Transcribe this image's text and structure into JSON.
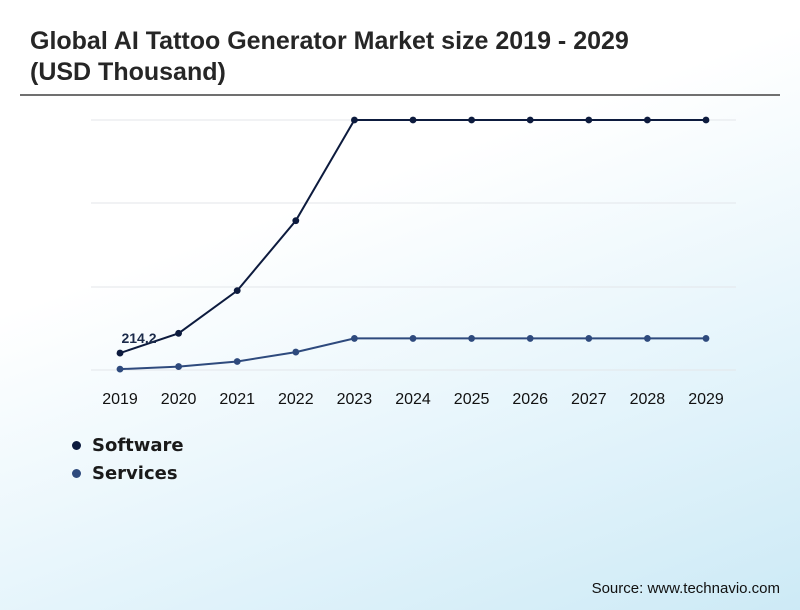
{
  "title": "Global AI Tattoo Generator Market size 2019 - 2029 (USD Thousand)",
  "source": "Source: www.technavio.com",
  "colors": {
    "software": "#0d1b3e",
    "services": "#2e4a7d",
    "grid": "#e3e6ea"
  },
  "chart_data": {
    "type": "line",
    "categories": [
      "2019",
      "2020",
      "2021",
      "2022",
      "2023",
      "2024",
      "2025",
      "2026",
      "2027",
      "2028",
      "2029"
    ],
    "series": [
      {
        "name": "Software",
        "values": [
          214.2,
          330,
          580,
          990,
          1580,
          1580,
          1580,
          1580,
          1580,
          1580,
          1580
        ]
      },
      {
        "name": "Services",
        "values": [
          120,
          135,
          165,
          220,
          300,
          300,
          300,
          300,
          300,
          300,
          300
        ]
      }
    ],
    "annotations": [
      {
        "series": "Software",
        "index": 0,
        "label": "214.2"
      }
    ],
    "ylim": [
      115,
      1580
    ],
    "grid": true,
    "legend_position": "bottom-left"
  }
}
